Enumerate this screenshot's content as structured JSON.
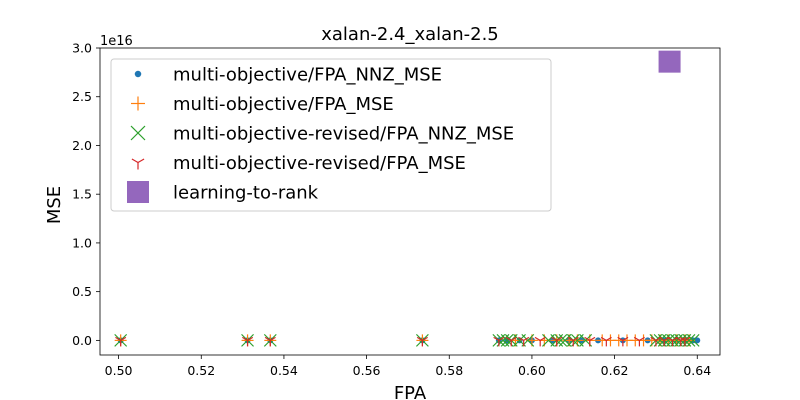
{
  "chart_data": {
    "type": "scatter",
    "title": "xalan-2.4_xalan-2.5",
    "xlabel": "FPA",
    "ylabel": "MSE",
    "y_offset_label": "1e16",
    "xlim": [
      0.4955,
      0.6455
    ],
    "ylim": [
      -0.15,
      3.0
    ],
    "x_ticks": [
      0.5,
      0.52,
      0.54,
      0.56,
      0.58,
      0.6,
      0.62,
      0.64
    ],
    "x_tick_labels": [
      "0.50",
      "0.52",
      "0.54",
      "0.56",
      "0.58",
      "0.60",
      "0.62",
      "0.64"
    ],
    "y_ticks": [
      0.0,
      0.5,
      1.0,
      1.5,
      2.0,
      2.5,
      3.0
    ],
    "y_tick_labels": [
      "0.0",
      "0.5",
      "1.0",
      "1.5",
      "2.0",
      "2.5",
      "3.0"
    ],
    "legend_position": "upper-left",
    "series": [
      {
        "name": "multi-objective/FPA_NNZ_MSE",
        "marker": "dot",
        "color": "#1f77b4",
        "x": [
          0.5005,
          0.5312,
          0.5367,
          0.5735,
          0.592,
          0.594,
          0.597,
          0.6,
          0.605,
          0.609,
          0.612,
          0.616,
          0.622,
          0.628,
          0.632,
          0.635,
          0.637,
          0.639,
          0.64
        ],
        "y": [
          0,
          0,
          0,
          0,
          0,
          0,
          0,
          0,
          0,
          0,
          0,
          0,
          0,
          0,
          0,
          0,
          0,
          0,
          0
        ]
      },
      {
        "name": "multi-objective/FPA_MSE",
        "marker": "plus",
        "color": "#ff7f0e",
        "x": [
          0.5005,
          0.5312,
          0.5367,
          0.5735,
          0.596,
          0.6,
          0.603,
          0.606,
          0.609,
          0.611,
          0.614,
          0.617,
          0.619,
          0.621,
          0.623,
          0.625,
          0.627,
          0.629,
          0.631,
          0.633,
          0.635,
          0.637,
          0.638
        ],
        "y": [
          0,
          0,
          0,
          0,
          0,
          0,
          0,
          0,
          0,
          0,
          0,
          0,
          0,
          0,
          0,
          0,
          0,
          0,
          0,
          0,
          0,
          0,
          0
        ]
      },
      {
        "name": "multi-objective-revised/FPA_NNZ_MSE",
        "marker": "x",
        "color": "#2ca02c",
        "x": [
          0.5005,
          0.5312,
          0.5367,
          0.5735,
          0.592,
          0.593,
          0.594,
          0.595,
          0.597,
          0.599,
          0.604,
          0.606,
          0.607,
          0.608,
          0.61,
          0.611,
          0.613,
          0.63,
          0.631,
          0.632,
          0.633,
          0.634,
          0.635,
          0.636,
          0.637,
          0.638,
          0.639
        ],
        "y": [
          0,
          0,
          0,
          0,
          0,
          0,
          0,
          0,
          0,
          0,
          0,
          0,
          0,
          0,
          0,
          0,
          0,
          0,
          0,
          0,
          0,
          0,
          0,
          0,
          0,
          0,
          0
        ]
      },
      {
        "name": "multi-objective-revised/FPA_MSE",
        "marker": "tri_down",
        "color": "#d62728",
        "x": [
          0.5005,
          0.5312,
          0.5367,
          0.5735,
          0.592,
          0.595,
          0.598,
          0.602,
          0.606,
          0.61,
          0.614,
          0.618,
          0.622,
          0.626,
          0.63,
          0.632,
          0.634,
          0.636,
          0.637
        ],
        "y": [
          0,
          0,
          0,
          0,
          0,
          0,
          0,
          0,
          0,
          0,
          0,
          0,
          0,
          0,
          0,
          0,
          0,
          0,
          0
        ]
      },
      {
        "name": "learning-to-rank",
        "marker": "square",
        "color": "#9467bd",
        "x": [
          0.6333
        ],
        "y": [
          2.86
        ]
      }
    ]
  }
}
